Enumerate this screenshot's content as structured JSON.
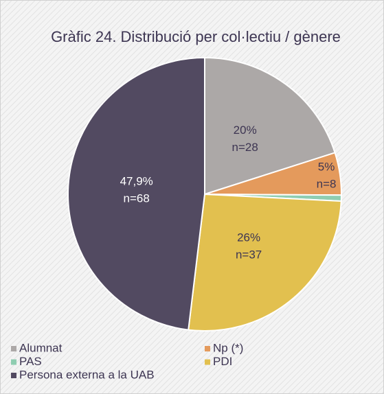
{
  "chart_data": {
    "type": "pie",
    "title": "Gràfic 24. Distribució per col·lectiu / gènere",
    "categories": [
      "Alumnat",
      "Np (*)",
      "PAS",
      "PDI",
      "Persona externa a la UAB"
    ],
    "values": [
      20,
      5,
      0.7,
      26,
      47.9
    ],
    "value_labels": [
      "20%",
      "5%",
      null,
      "26%",
      "47,9%"
    ],
    "count_labels": [
      "n=28",
      "n=8",
      null,
      "n=37",
      "n=68"
    ],
    "colors": [
      "#aca8a7",
      "#e49a5c",
      "#8fcdb1",
      "#e2c04f",
      "#524a61"
    ],
    "label_colors": [
      "#3d3552",
      "#3d3552",
      "#3d3552",
      "#3d3552",
      "#ffffff"
    ],
    "legend": "bottom"
  }
}
